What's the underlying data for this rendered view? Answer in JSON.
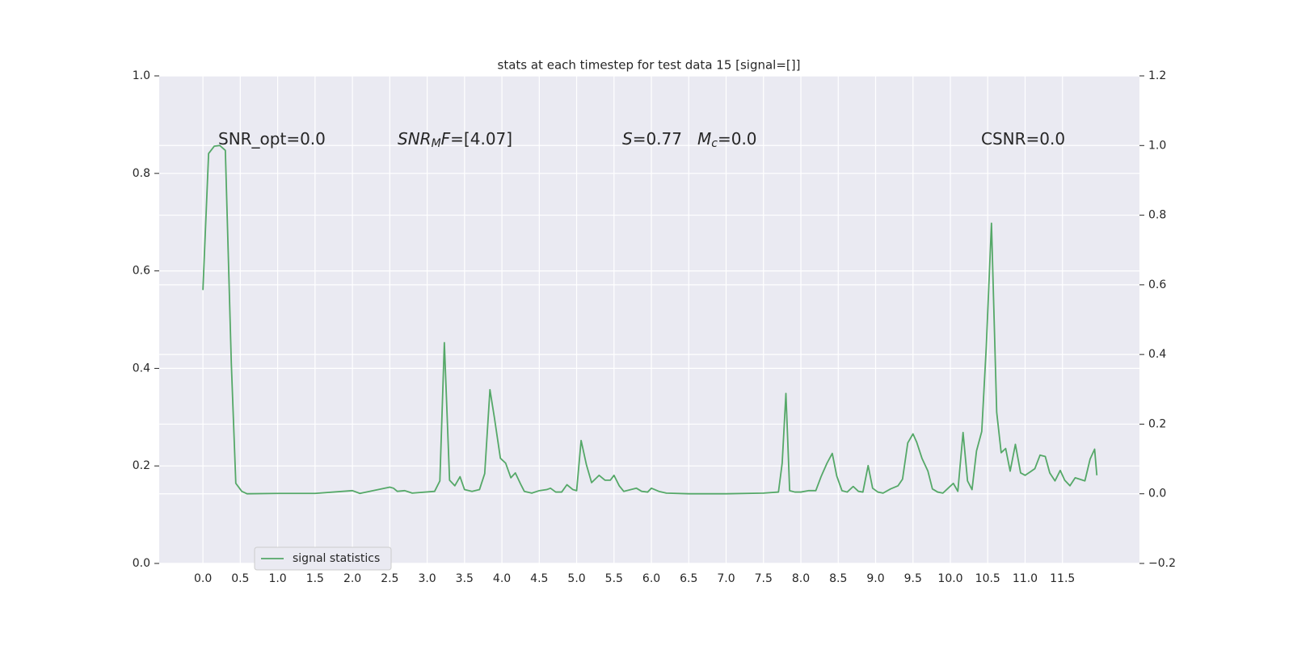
{
  "chart_data": {
    "type": "line",
    "title": "stats at each timestep for test data 15 [signal=[]]",
    "x": [
      0,
      0.076,
      0.151,
      0.227,
      0.3,
      0.38,
      0.44,
      0.52,
      0.59,
      1.0,
      1.5,
      2.0,
      2.1,
      2.5,
      2.55,
      2.6,
      2.7,
      2.8,
      3.1,
      3.17,
      3.23,
      3.3,
      3.37,
      3.44,
      3.5,
      3.6,
      3.7,
      3.77,
      3.84,
      3.9,
      3.98,
      4.05,
      4.12,
      4.18,
      4.25,
      4.3,
      4.4,
      4.5,
      4.6,
      4.65,
      4.72,
      4.8,
      4.87,
      4.95,
      5.0,
      5.06,
      5.13,
      5.2,
      5.3,
      5.38,
      5.45,
      5.5,
      5.57,
      5.63,
      5.8,
      5.87,
      5.95,
      6.0,
      6.1,
      6.2,
      6.5,
      7.0,
      7.5,
      7.7,
      7.75,
      7.8,
      7.85,
      7.92,
      8.0,
      8.1,
      8.2,
      8.27,
      8.35,
      8.42,
      8.48,
      8.55,
      8.62,
      8.7,
      8.77,
      8.83,
      8.9,
      8.96,
      9.03,
      9.1,
      9.2,
      9.3,
      9.36,
      9.43,
      9.5,
      9.55,
      9.62,
      9.7,
      9.76,
      9.83,
      9.9,
      9.97,
      10.04,
      10.1,
      10.17,
      10.23,
      10.29,
      10.35,
      10.42,
      10.48,
      10.55,
      10.62,
      10.68,
      10.74,
      10.8,
      10.87,
      10.94,
      11.0,
      11.07,
      11.13,
      11.2,
      11.27,
      11.33,
      11.4,
      11.47,
      11.53,
      11.6,
      11.67,
      11.73,
      11.8,
      11.87,
      11.93,
      11.96
    ],
    "series": [
      {
        "name": "signal statistics",
        "color": "#55a868",
        "axis": "y2",
        "values": [
          0.585,
          0.977,
          0.998,
          1.0,
          0.986,
          0.374,
          0.03,
          0.007,
          0,
          0.001,
          0.001,
          0.009,
          0.001,
          0.019,
          0.016,
          0.007,
          0.009,
          0.002,
          0.007,
          0.037,
          0.434,
          0.039,
          0.023,
          0.049,
          0.012,
          0.007,
          0.012,
          0.058,
          0.299,
          0.218,
          0.102,
          0.088,
          0.046,
          0.06,
          0.028,
          0.007,
          0.002,
          0.009,
          0.012,
          0.016,
          0.005,
          0.005,
          0.026,
          0.012,
          0.009,
          0.153,
          0.084,
          0.032,
          0.053,
          0.039,
          0.039,
          0.053,
          0.023,
          0.007,
          0.016,
          0.007,
          0.005,
          0.016,
          0.007,
          0.002,
          0,
          0,
          0.002,
          0.005,
          0.088,
          0.288,
          0.009,
          0.005,
          0.005,
          0.009,
          0.009,
          0.049,
          0.088,
          0.116,
          0.051,
          0.009,
          0.005,
          0.021,
          0.007,
          0.005,
          0.081,
          0.016,
          0.005,
          0.002,
          0.014,
          0.023,
          0.042,
          0.146,
          0.172,
          0.148,
          0.102,
          0.065,
          0.014,
          0.005,
          0.002,
          0.016,
          0.03,
          0.007,
          0.176,
          0.037,
          0.012,
          0.123,
          0.179,
          0.42,
          0.777,
          0.234,
          0.118,
          0.13,
          0.065,
          0.142,
          0.06,
          0.053,
          0.063,
          0.072,
          0.111,
          0.107,
          0.06,
          0.037,
          0.067,
          0.039,
          0.023,
          0.046,
          0.042,
          0.037,
          0.1,
          0.128,
          0.053
        ]
      }
    ],
    "xlim": [
      -0.585,
      12.53
    ],
    "xticks": [
      {
        "value": 0,
        "label": "0.0"
      },
      0.5,
      {
        "value": 1,
        "label": "1.0"
      },
      1.5,
      {
        "value": 2,
        "label": "2.0"
      },
      2.5,
      {
        "value": 3,
        "label": "3.0"
      },
      3.5,
      {
        "value": 4,
        "label": "4.0"
      },
      4.5,
      {
        "value": 5,
        "label": "5.0"
      },
      5.5,
      {
        "value": 6,
        "label": "6.0"
      },
      6.5,
      {
        "value": 7,
        "label": "7.0"
      },
      7.5,
      {
        "value": 8,
        "label": "8.0"
      },
      8.5,
      {
        "value": 9,
        "label": "9.0"
      },
      9.5,
      {
        "value": 10,
        "label": "10.0"
      },
      10.5,
      {
        "value": 11,
        "label": "11.0"
      },
      11.5
    ],
    "ylim": [
      0,
      1
    ],
    "yticks": [
      {
        "value": 0,
        "label": "0.0"
      },
      0.2,
      0.4,
      0.6,
      0.8,
      {
        "value": 1,
        "label": "1.0"
      }
    ],
    "y2lim": [
      -0.2,
      1.2
    ],
    "y2ticks": [
      {
        "value": -0.2,
        "label": "−0.2"
      },
      {
        "value": 0,
        "label": "0.0"
      },
      0.2,
      0.4,
      0.6,
      0.8,
      {
        "value": 1,
        "label": "1.0"
      },
      1.2
    ],
    "grid": true,
    "legend": "lower left",
    "annotations": [
      {
        "parts": [
          {
            "text": "SNR_opt=0.0"
          }
        ]
      },
      {
        "parts": [
          {
            "text": "SNR",
            "style": "italic"
          },
          {
            "text": "M",
            "style": "italic-sub"
          },
          {
            "text": "F",
            "style": "italic"
          },
          {
            "text": "=[4.07]"
          }
        ]
      },
      {
        "parts": [
          {
            "text": "S",
            "style": "italic"
          },
          {
            "text": "=0.77"
          }
        ]
      },
      {
        "parts": [
          {
            "text": "M",
            "style": "italic"
          },
          {
            "text": "c",
            "style": "italic-sub"
          },
          {
            "text": "=0.0"
          }
        ]
      },
      {
        "parts": [
          {
            "text": "CSNR=0.0"
          }
        ]
      }
    ]
  }
}
